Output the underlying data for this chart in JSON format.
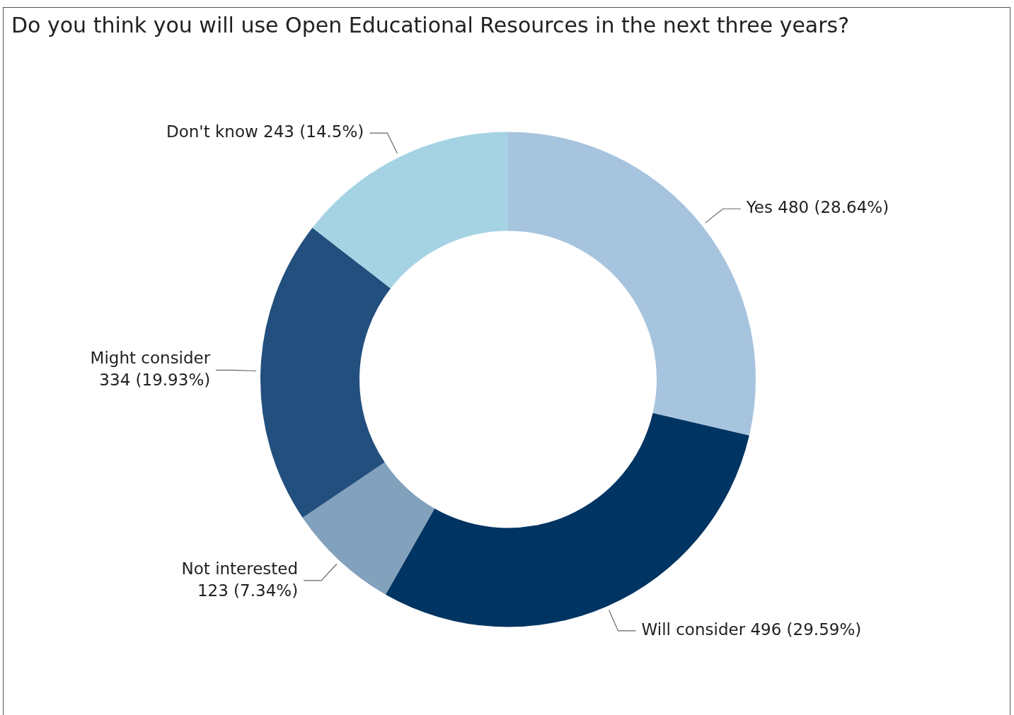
{
  "chart_data": {
    "type": "donut",
    "title": "Do you think you will use Open Educational Resources in the next three years?",
    "categories": [
      "Yes",
      "Will consider",
      "Not interested",
      "Might consider",
      "Don't know"
    ],
    "values": [
      480,
      496,
      123,
      334,
      243
    ],
    "value_labels": [
      "480 (28.64%)",
      "496 (29.59%)",
      "123 (7.34%)",
      "334 (19.93%)",
      "243 (14.5%)"
    ],
    "colors": [
      "#a7c4de",
      "#003462",
      "#82a1bd",
      "#224f7e",
      "#a5d3e3"
    ],
    "legend": false
  }
}
